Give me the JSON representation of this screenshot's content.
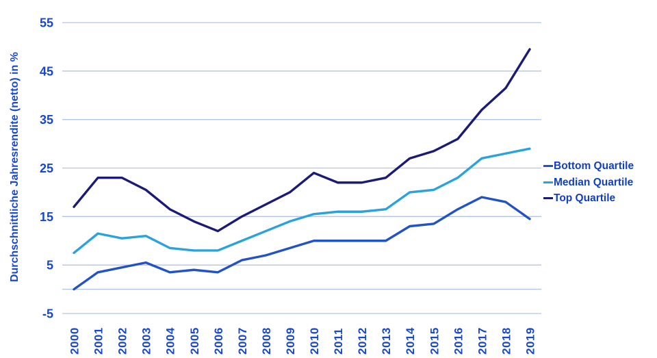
{
  "chart_data": {
    "type": "line",
    "title": "",
    "xlabel": "",
    "ylabel": "Durchschnittliche Jahresrendite (netto) in %",
    "x": [
      "2000",
      "2001",
      "2002",
      "2003",
      "2004",
      "2005",
      "2006",
      "2007",
      "2008",
      "2009",
      "2010",
      "2011",
      "2012",
      "2013",
      "2014",
      "2015",
      "2016",
      "2017",
      "2018",
      "2019"
    ],
    "yticks": [
      55,
      45,
      35,
      25,
      15,
      5,
      -5
    ],
    "ylim": [
      -5,
      55
    ],
    "grid": true,
    "zero_axis_line": true,
    "legend_position": "right",
    "series": [
      {
        "name": "Bottom Quartile",
        "color": "#2152c8",
        "values": [
          0,
          3.5,
          4.5,
          5.5,
          3.5,
          4,
          3.5,
          6,
          7,
          8.5,
          10,
          10,
          10,
          10,
          13,
          13.5,
          16.5,
          19,
          18,
          14.5
        ]
      },
      {
        "name": "Median Quartile",
        "color": "#2aa3dc",
        "values": [
          7.5,
          11.5,
          10.5,
          11,
          8.5,
          8,
          8,
          10,
          12,
          14,
          15.5,
          16,
          16,
          16.5,
          20,
          20.5,
          23,
          27,
          28,
          29
        ]
      },
      {
        "name": "Top Quartile",
        "color": "#1b1b77",
        "values": [
          17,
          23,
          23,
          20.5,
          16.5,
          14,
          12,
          15,
          17.5,
          20,
          24,
          22,
          22,
          23,
          27,
          28.5,
          31,
          37,
          41.5,
          49.5
        ]
      }
    ],
    "colors": {
      "grid": "#b4c3e8",
      "zero_axis": "#b4c3e8",
      "tick_text": "#1747d2",
      "ylabel_text": "#1747d2",
      "legend_text": "#1240c4",
      "background": "#ffffff"
    }
  }
}
